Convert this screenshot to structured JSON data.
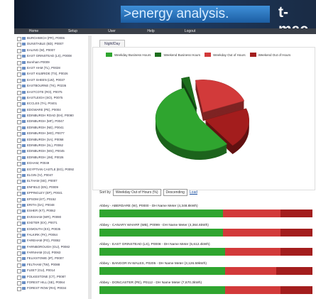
{
  "header": {
    "product": ">energy analysis.",
    "brand": "t-mac"
  },
  "nav": [
    "Home",
    "Setup",
    "User",
    "Help",
    "Logout"
  ],
  "sites": [
    "BURGHWICH (PR), P0006",
    "DUNSTABLE (BD), P0007",
    "EALING (W), P0007",
    "EAST GRINSTEAD (LS), P0008",
    "Boreham P0009",
    "EAST HAM (TL), P0028",
    "EAST KILBRIDE (TS), P0026",
    "EAST SHEEN (LW), P0037",
    "EASTBOURNE (TK), P0236",
    "EASTCOTE (RO), P0075",
    "EASTLEIGH (SO), P0075",
    "ECCLES (TA), P0401",
    "EDGWARE (PE), P0004",
    "EDINBURGH ROAD (EH), P0080",
    "EDINBURGH (MF), P0047",
    "EDINBURGH (NE), P0041",
    "EDINBURGH (MO), P0077",
    "EDINBURGH (SA), P0058",
    "EDINBURGH (SL), P0062",
    "EDINBURGH (WS), P0045",
    "EDINBURGH (JM), P0026",
    "EGHAM, P0049",
    "EGYPTIAN CASTLE (EG), P0092",
    "ELGIN (IV), P0047",
    "ELTHAM (SE), P0007",
    "ENFIELD (EN), P0009",
    "EPPINGLEY (EP), P0041",
    "EPSOM (KT), P0152",
    "ERITH (DA), P0048",
    "ESHER (KT), P0062",
    "EVESHAM (WR), P0090",
    "EXETER (EX), P0071",
    "EXMOUTH (EX), P0035",
    "FALKIRK (FK), P0064",
    "FAREHAM (PO), P0082",
    "FARNBOROUGH (GU), P0082",
    "FARNHAM (GU), P0063",
    "FELIXSTOWE (IP), P0007",
    "FELTHAM (TW), P0088",
    "FLEET (GU), P0014",
    "FOLKESTONE (CT), P0087",
    "FOREST HILL (SE), P0064",
    "FOREST ROW (RH), P0034"
  ],
  "tab": "Night/Day",
  "legend": [
    {
      "name": "Weekday Business Hours",
      "color": "#2fa52f"
    },
    {
      "name": "Weekend Business Hours",
      "color": "#1c6e1c"
    },
    {
      "name": "Weekday Out of Hours",
      "color": "#d23a3a"
    },
    {
      "name": "Weekend Out of Hours",
      "color": "#a31d1d"
    }
  ],
  "pie": {
    "type": "pie",
    "values": [
      55,
      3,
      22,
      20
    ]
  },
  "sort": {
    "label": "Sort by",
    "field": "Weekday Out of Hours (%)",
    "order": "Descending",
    "button": "Load"
  },
  "meters": [
    {
      "label": "Abbey - ABERDARE (W), P0000 - DH Name Meter (4,348.8kWh)",
      "values": [
        58,
        27,
        15
      ]
    },
    {
      "label": "Abbey - CANARY WHARF (MB), P0099 - DH Name Meter (4,364.6kWh)",
      "values": [
        58,
        27,
        15
      ]
    },
    {
      "label": "Abbey - EAST GRINSTEAD (LS), P0008 - DH Name Meter (5,612.4kWh)",
      "values": [
        59,
        26,
        15
      ]
    },
    {
      "label": "Abbey - BANGOR IN WALES, P0205 - DH Name Meter (3,126.59kWh)",
      "values": [
        59,
        24,
        17
      ]
    },
    {
      "label": "Abbey - DONCASTER (PE), P0112 - DH Name Meter (7,670.3kWh)",
      "values": [
        59,
        26,
        15
      ]
    }
  ]
}
